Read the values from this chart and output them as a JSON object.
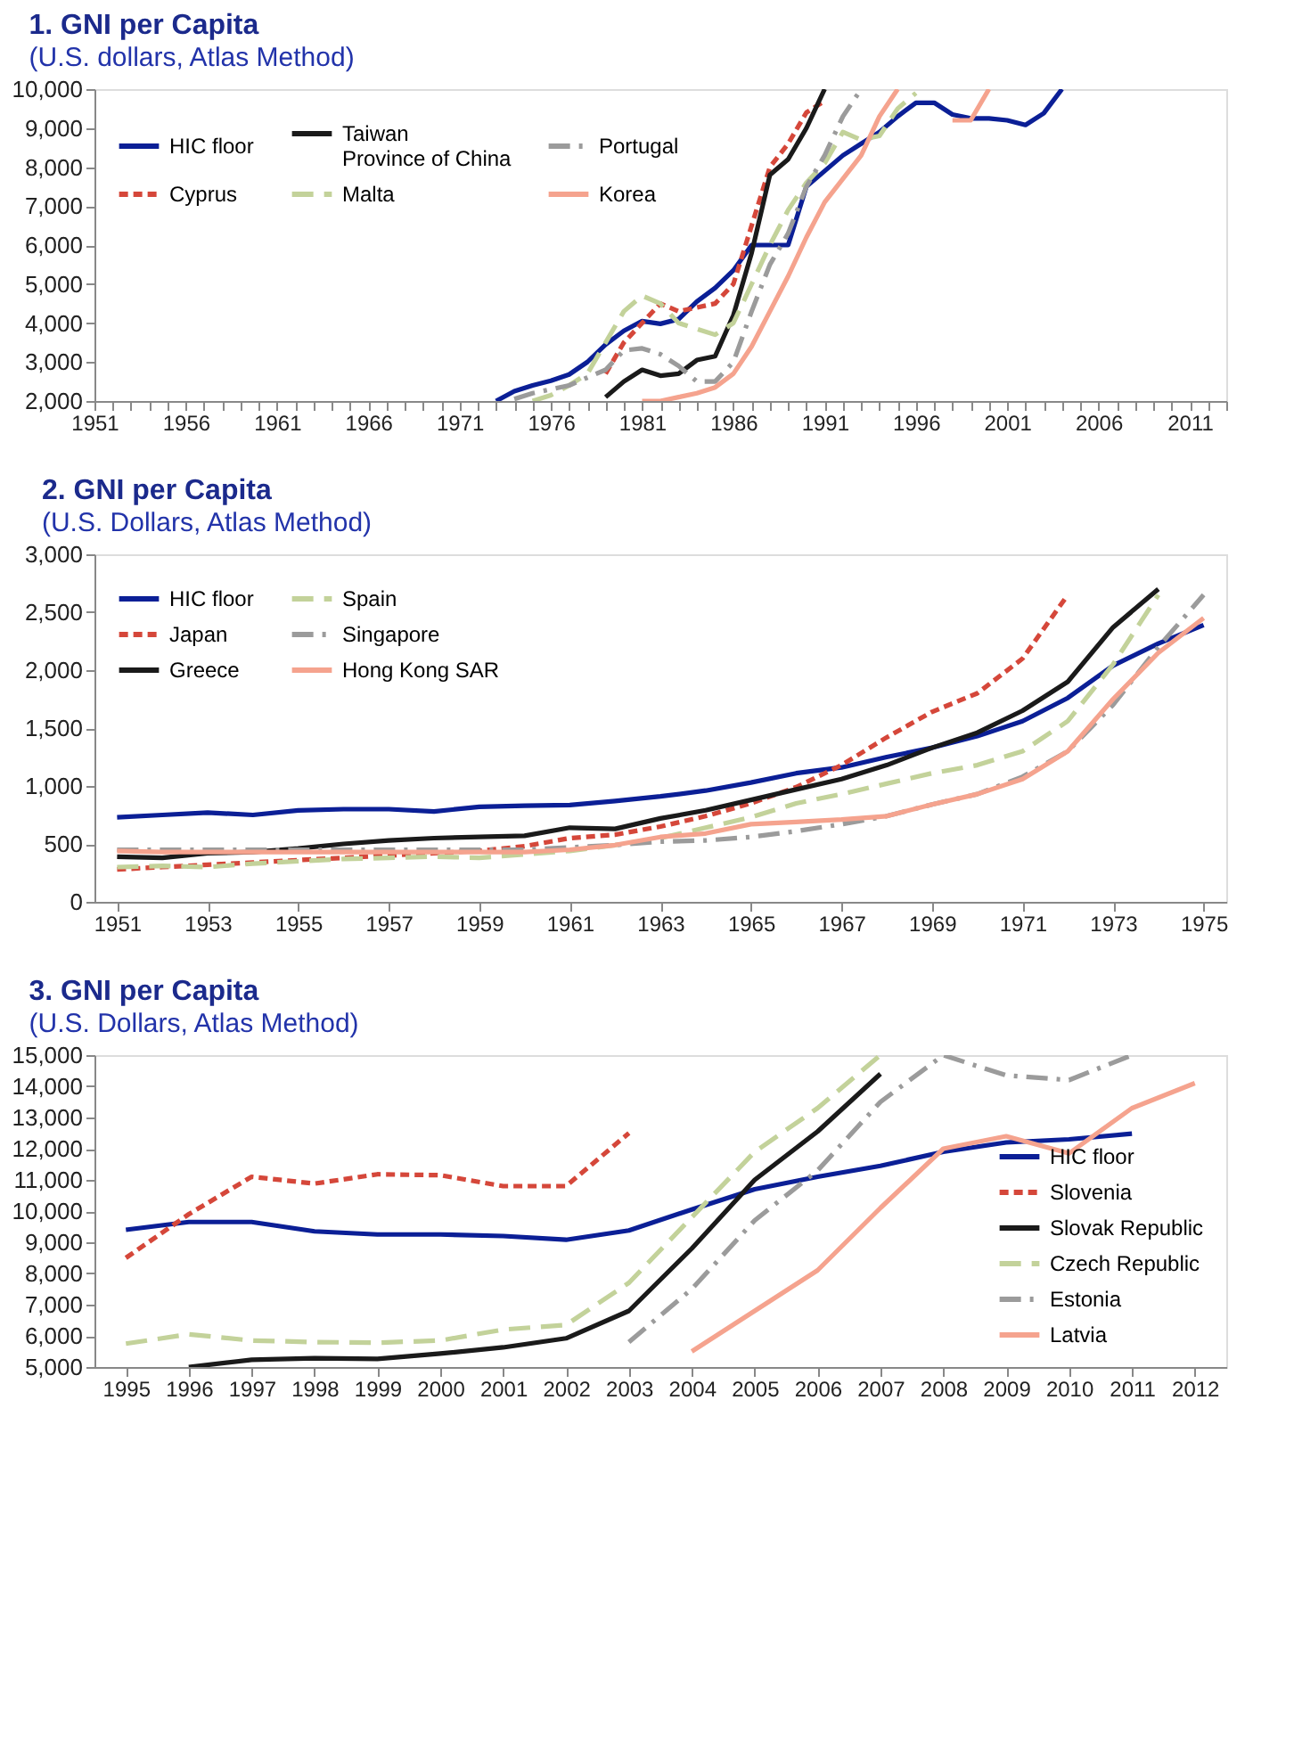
{
  "chart_data": [
    {
      "type": "line",
      "title": "1. GNI per Capita",
      "subtitle": "(U.S. dollars, Atlas Method)",
      "legend": "top left",
      "grid": false,
      "x": [
        1973,
        1974,
        1975,
        1976,
        1977,
        1978,
        1979,
        1980,
        1981,
        1982,
        1983,
        1984,
        1985,
        1986,
        1987,
        1988,
        1989,
        1990,
        1991,
        1992,
        1993,
        1994,
        1995,
        1996,
        1997,
        1998,
        1999,
        2000,
        2001,
        2002,
        2003,
        2004
      ],
      "xlim": [
        1951,
        2013
      ],
      "xticks": [
        1951,
        {
          "value": 1952,
          "label": null
        },
        {
          "value": 1953,
          "label": null
        },
        {
          "value": 1954,
          "label": null
        },
        {
          "value": 1955,
          "label": null
        },
        1956,
        {
          "value": 1957,
          "label": null
        },
        {
          "value": 1958,
          "label": null
        },
        {
          "value": 1959,
          "label": null
        },
        {
          "value": 1960,
          "label": null
        },
        1961,
        {
          "value": 1962,
          "label": null
        },
        {
          "value": 1963,
          "label": null
        },
        {
          "value": 1964,
          "label": null
        },
        {
          "value": 1965,
          "label": null
        },
        1966,
        {
          "value": 1967,
          "label": null
        },
        {
          "value": 1968,
          "label": null
        },
        {
          "value": 1969,
          "label": null
        },
        {
          "value": 1970,
          "label": null
        },
        1971,
        {
          "value": 1972,
          "label": null
        },
        {
          "value": 1973,
          "label": null
        },
        {
          "value": 1974,
          "label": null
        },
        {
          "value": 1975,
          "label": null
        },
        1976,
        {
          "value": 1977,
          "label": null
        },
        {
          "value": 1978,
          "label": null
        },
        {
          "value": 1979,
          "label": null
        },
        {
          "value": 1980,
          "label": null
        },
        1981,
        {
          "value": 1982,
          "label": null
        },
        {
          "value": 1983,
          "label": null
        },
        {
          "value": 1984,
          "label": null
        },
        {
          "value": 1985,
          "label": null
        },
        1986,
        {
          "value": 1987,
          "label": null
        },
        {
          "value": 1988,
          "label": null
        },
        {
          "value": 1989,
          "label": null
        },
        {
          "value": 1990,
          "label": null
        },
        1991,
        {
          "value": 1992,
          "label": null
        },
        {
          "value": 1993,
          "label": null
        },
        {
          "value": 1994,
          "label": null
        },
        {
          "value": 1995,
          "label": null
        },
        1996,
        {
          "value": 1997,
          "label": null
        },
        {
          "value": 1998,
          "label": null
        },
        {
          "value": 1999,
          "label": null
        },
        {
          "value": 2000,
          "label": null
        },
        2001,
        {
          "value": 2002,
          "label": null
        },
        {
          "value": 2003,
          "label": null
        },
        {
          "value": 2004,
          "label": null
        },
        {
          "value": 2005,
          "label": null
        },
        2006,
        {
          "value": 2007,
          "label": null
        },
        {
          "value": 2008,
          "label": null
        },
        {
          "value": 2009,
          "label": null
        },
        {
          "value": 2010,
          "label": null
        },
        2011,
        {
          "value": 2012,
          "label": null
        },
        {
          "value": 2013,
          "label": null
        }
      ],
      "ylim": [
        2000,
        10000
      ],
      "yticks": [
        {
          "value": 2000,
          "label": "2,000"
        },
        {
          "value": 3000,
          "label": "3,000"
        },
        {
          "value": 4000,
          "label": "4,000"
        },
        {
          "value": 5000,
          "label": "5,000"
        },
        {
          "value": 6000,
          "label": "6,000"
        },
        {
          "value": 7000,
          "label": "7,000"
        },
        {
          "value": 8000,
          "label": "8,000"
        },
        {
          "value": 9000,
          "label": "9,000"
        },
        {
          "value": 10000,
          "label": "10,000"
        }
      ],
      "series": [
        {
          "name": "HIC floor",
          "color": "#0b1f96",
          "line_style": "solid",
          "values": [
            2000,
            2250,
            2400,
            2520,
            2680,
            3000,
            3450,
            3800,
            4050,
            3980,
            4100,
            4550,
            4900,
            5350,
            6000,
            6000,
            6000,
            7500,
            7900,
            8300,
            8600,
            8900,
            9300,
            9650,
            9650,
            9350,
            9250,
            9250,
            9200,
            9080,
            9380,
            10000
          ]
        },
        {
          "name": "Cyprus",
          "color": "#d5473a",
          "line_style": "dotted",
          "values": [
            null,
            null,
            null,
            null,
            null,
            null,
            2700,
            3500,
            4000,
            4500,
            4300,
            4400,
            4500,
            5000,
            6500,
            8000,
            8600,
            9400,
            9700,
            null,
            null,
            null,
            null,
            null,
            null,
            null,
            null,
            null,
            null,
            null,
            null,
            null
          ]
        },
        {
          "name": "Taiwan\nProvince of China",
          "color": "#1a1a1a",
          "line_style": "solid",
          "values": [
            null,
            null,
            null,
            null,
            null,
            null,
            2100,
            2500,
            2800,
            2650,
            2700,
            3050,
            3150,
            4200,
            5800,
            7800,
            8200,
            9000,
            10000,
            null,
            null,
            null,
            null,
            null,
            null,
            null,
            null,
            null,
            null,
            null,
            null,
            null
          ]
        },
        {
          "name": "Malta",
          "color": "#c3d29a",
          "line_style": "dashed",
          "values": [
            null,
            null,
            2000,
            2150,
            2400,
            2700,
            3500,
            4300,
            4700,
            4500,
            4000,
            3850,
            3700,
            4000,
            5000,
            6000,
            6900,
            7600,
            8100,
            8900,
            8700,
            8800,
            9500,
            9900,
            null,
            null,
            null,
            null,
            null,
            null,
            null,
            null
          ]
        },
        {
          "name": "Portugal",
          "color": "#9b9b9b",
          "line_style": "dashdot",
          "values": [
            null,
            2050,
            2200,
            2300,
            2400,
            2600,
            2800,
            3300,
            3350,
            3200,
            2900,
            2500,
            2500,
            3000,
            4300,
            5500,
            6300,
            7500,
            8300,
            9300,
            10000,
            null,
            null,
            null,
            null,
            null,
            null,
            null,
            null,
            null,
            null,
            null
          ]
        },
        {
          "name": "Korea",
          "color": "#f5a38e",
          "line_style": "solid",
          "values": [
            null,
            null,
            null,
            null,
            null,
            null,
            null,
            null,
            2000,
            2000,
            2100,
            2200,
            2350,
            2700,
            3400,
            4300,
            5200,
            6200,
            7100,
            7700,
            8300,
            9300,
            10000,
            null,
            null,
            9200,
            9200,
            10000,
            null,
            null,
            null,
            null
          ]
        }
      ]
    },
    {
      "type": "line",
      "title": "2. GNI per Capita",
      "subtitle": "(U.S. Dollars, Atlas Method)",
      "legend": "top left",
      "grid": false,
      "x": [
        1951,
        1952,
        1953,
        1954,
        1955,
        1956,
        1957,
        1958,
        1959,
        1960,
        1961,
        1962,
        1963,
        1964,
        1965,
        1966,
        1967,
        1968,
        1969,
        1970,
        1971,
        1972,
        1973,
        1974,
        1975
      ],
      "xlim": [
        1950.5,
        1975.5
      ],
      "xticks": [
        1951,
        1953,
        1955,
        1957,
        1959,
        1961,
        1963,
        1965,
        1967,
        1969,
        1971,
        1973,
        1975
      ],
      "ylim": [
        0,
        3000
      ],
      "yticks": [
        0,
        500,
        {
          "value": 1000,
          "label": "1,000"
        },
        {
          "value": 1500,
          "label": "1,500"
        },
        {
          "value": 2000,
          "label": "2,000"
        },
        {
          "value": 2500,
          "label": "2,500"
        },
        {
          "value": 3000,
          "label": "3,000"
        }
      ],
      "series": [
        {
          "name": "HIC floor",
          "color": "#0b1f96",
          "line_style": "solid",
          "values": [
            730,
            750,
            770,
            750,
            790,
            800,
            800,
            780,
            820,
            830,
            835,
            870,
            910,
            960,
            1030,
            1110,
            1160,
            1250,
            1330,
            1430,
            1560,
            1760,
            2040,
            2230,
            2390
          ]
        },
        {
          "name": "Japan",
          "color": "#d5473a",
          "line_style": "dotted",
          "values": [
            280,
            300,
            320,
            340,
            360,
            380,
            400,
            420,
            440,
            480,
            550,
            580,
            650,
            740,
            850,
            990,
            1180,
            1420,
            1640,
            1800,
            2100,
            2650,
            null,
            null,
            null
          ]
        },
        {
          "name": "Greece",
          "color": "#1a1a1a",
          "line_style": "solid",
          "values": [
            390,
            380,
            420,
            430,
            460,
            500,
            530,
            550,
            560,
            570,
            640,
            630,
            720,
            790,
            880,
            970,
            1060,
            1180,
            1330,
            1460,
            1650,
            1900,
            2370,
            2700,
            null
          ]
        },
        {
          "name": "Spain",
          "color": "#c3d29a",
          "line_style": "dashed",
          "values": [
            300,
            310,
            300,
            330,
            350,
            370,
            380,
            390,
            380,
            410,
            440,
            490,
            550,
            640,
            730,
            850,
            930,
            1020,
            1110,
            1180,
            1300,
            1560,
            2050,
            2650,
            null
          ]
        },
        {
          "name": "Singapore",
          "color": "#9b9b9b",
          "line_style": "dashdot",
          "values": [
            450,
            450,
            450,
            450,
            450,
            450,
            450,
            450,
            450,
            450,
            470,
            490,
            520,
            530,
            560,
            610,
            670,
            740,
            840,
            930,
            1080,
            1300,
            1700,
            2200,
            2650
          ]
        },
        {
          "name": "Hong Kong SAR",
          "color": "#f5a38e",
          "line_style": "solid",
          "values": [
            440,
            430,
            430,
            430,
            430,
            430,
            430,
            430,
            430,
            430,
            450,
            490,
            560,
            590,
            670,
            690,
            710,
            740,
            840,
            930,
            1060,
            1300,
            1750,
            2150,
            2450
          ]
        }
      ]
    },
    {
      "type": "line",
      "title": "3. GNI per Capita",
      "subtitle": "(U.S. Dollars, Atlas Method)",
      "legend": "bottom right",
      "grid": false,
      "x": [
        1995,
        1996,
        1997,
        1998,
        1999,
        2000,
        2001,
        2002,
        2003,
        2004,
        2005,
        2006,
        2007,
        2008,
        2009,
        2010,
        2011,
        2012
      ],
      "xlim": [
        1994.5,
        2012.5
      ],
      "xticks": [
        1995,
        1996,
        1997,
        1998,
        1999,
        2000,
        2001,
        2002,
        2003,
        2004,
        2005,
        2006,
        2007,
        2008,
        2009,
        2010,
        2011,
        2012
      ],
      "ylim": [
        5000,
        15000
      ],
      "yticks": [
        {
          "value": 5000,
          "label": "5,000"
        },
        {
          "value": 6000,
          "label": "6,000"
        },
        {
          "value": 7000,
          "label": "7,000"
        },
        {
          "value": 8000,
          "label": "8,000"
        },
        {
          "value": 9000,
          "label": "9,000"
        },
        {
          "value": 10000,
          "label": "10,000"
        },
        {
          "value": 11000,
          "label": "11,000"
        },
        {
          "value": 12000,
          "label": "12,000"
        },
        {
          "value": 13000,
          "label": "13,000"
        },
        {
          "value": 14000,
          "label": "14,000"
        },
        {
          "value": 15000,
          "label": "15,000"
        }
      ],
      "series": [
        {
          "name": "HIC floor",
          "color": "#0b1f96",
          "line_style": "solid",
          "values": [
            9400,
            9650,
            9650,
            9350,
            9250,
            9250,
            9200,
            9080,
            9380,
            10050,
            10700,
            11100,
            11450,
            11900,
            12200,
            12300,
            12480,
            null
          ]
        },
        {
          "name": "Slovenia",
          "color": "#d5473a",
          "line_style": "dotted",
          "values": [
            8500,
            9900,
            11100,
            10880,
            11180,
            11150,
            10800,
            10800,
            12500,
            null,
            null,
            null,
            null,
            null,
            null,
            null,
            null,
            null
          ]
        },
        {
          "name": "Slovak Republic",
          "color": "#1a1a1a",
          "line_style": "solid",
          "values": [
            null,
            5000,
            5230,
            5280,
            5260,
            5430,
            5630,
            5920,
            6800,
            8800,
            11000,
            12550,
            14400,
            null,
            null,
            null,
            null,
            null
          ]
        },
        {
          "name": "Czech Republic",
          "color": "#c3d29a",
          "line_style": "dashed",
          "values": [
            5750,
            6050,
            5850,
            5800,
            5780,
            5850,
            6200,
            6350,
            7700,
            9800,
            11900,
            13300,
            15000,
            null,
            null,
            null,
            null,
            null
          ]
        },
        {
          "name": "Estonia",
          "color": "#9b9b9b",
          "line_style": "dashdot",
          "values": [
            null,
            null,
            null,
            null,
            null,
            null,
            null,
            null,
            5800,
            7500,
            9700,
            11300,
            13500,
            15000,
            14350,
            14200,
            15000,
            null
          ]
        },
        {
          "name": "Latvia",
          "color": "#f5a38e",
          "line_style": "solid",
          "values": [
            null,
            null,
            null,
            null,
            null,
            null,
            null,
            null,
            null,
            5500,
            6800,
            8100,
            10100,
            12000,
            12400,
            11850,
            13300,
            14100
          ]
        }
      ]
    }
  ]
}
